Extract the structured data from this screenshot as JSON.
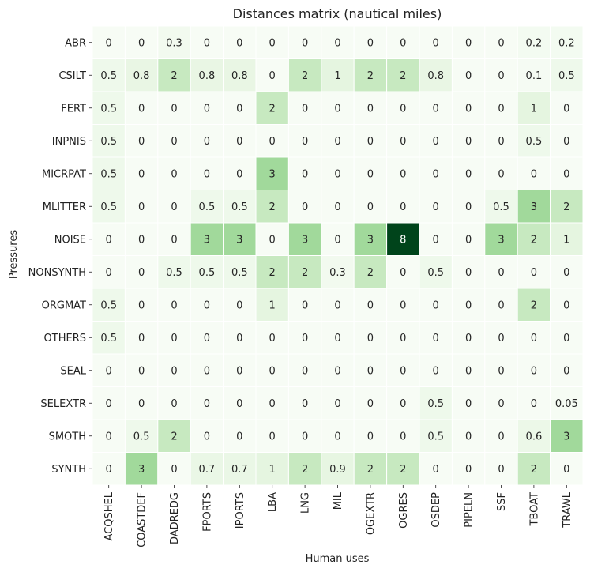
{
  "chart_data": {
    "type": "heatmap",
    "title": "Distances matrix (nautical miles)",
    "xlabel": "Human uses",
    "ylabel": "Pressures",
    "colormap": "Greens",
    "vmin": 0,
    "vmax": 8,
    "x_categories": [
      "ACQSHEL",
      "COASTDEF",
      "DADREDG",
      "FPORTS",
      "IPORTS",
      "LBA",
      "LNG",
      "MIL",
      "OGEXTR",
      "OGRES",
      "OSDEP",
      "PIPELN",
      "SSF",
      "TBOAT",
      "TRAWL"
    ],
    "y_categories": [
      "ABR",
      "CSILT",
      "FERT",
      "INPNIS",
      "MICRPAT",
      "MLITTER",
      "NOISE",
      "NONSYNTH",
      "ORGMAT",
      "OTHERS",
      "SEAL",
      "SELEXTR",
      "SMOTH",
      "SYNTH"
    ],
    "values": [
      [
        0,
        0,
        0.3,
        0,
        0,
        0,
        0,
        0,
        0,
        0,
        0,
        0,
        0,
        0.2,
        0.2
      ],
      [
        0.5,
        0.8,
        2,
        0.8,
        0.8,
        0,
        2,
        1,
        2,
        2,
        0.8,
        0,
        0,
        0.1,
        0.5
      ],
      [
        0.5,
        0,
        0,
        0,
        0,
        2,
        0,
        0,
        0,
        0,
        0,
        0,
        0,
        1,
        0
      ],
      [
        0.5,
        0,
        0,
        0,
        0,
        0,
        0,
        0,
        0,
        0,
        0,
        0,
        0,
        0.5,
        0
      ],
      [
        0.5,
        0,
        0,
        0,
        0,
        3,
        0,
        0,
        0,
        0,
        0,
        0,
        0,
        0,
        0
      ],
      [
        0.5,
        0,
        0,
        0.5,
        0.5,
        2,
        0,
        0,
        0,
        0,
        0,
        0,
        0.5,
        3,
        2
      ],
      [
        0,
        0,
        0,
        3,
        3,
        0,
        3,
        0,
        3,
        8,
        0,
        0,
        3,
        2,
        1
      ],
      [
        0,
        0,
        0.5,
        0.5,
        0.5,
        2,
        2,
        0.3,
        2,
        0,
        0.5,
        0,
        0,
        0,
        0
      ],
      [
        0.5,
        0,
        0,
        0,
        0,
        1,
        0,
        0,
        0,
        0,
        0,
        0,
        0,
        2,
        0
      ],
      [
        0.5,
        0,
        0,
        0,
        0,
        0,
        0,
        0,
        0,
        0,
        0,
        0,
        0,
        0,
        0
      ],
      [
        0,
        0,
        0,
        0,
        0,
        0,
        0,
        0,
        0,
        0,
        0,
        0,
        0,
        0,
        0
      ],
      [
        0,
        0,
        0,
        0,
        0,
        0,
        0,
        0,
        0,
        0,
        0.5,
        0,
        0,
        0,
        0.05
      ],
      [
        0,
        0.5,
        2,
        0,
        0,
        0,
        0,
        0,
        0,
        0,
        0.5,
        0,
        0,
        0.6,
        3
      ],
      [
        0,
        3,
        0,
        0.7,
        0.7,
        1,
        2,
        0.9,
        2,
        2,
        0,
        0,
        0,
        2,
        0
      ]
    ],
    "annotations": true,
    "legend": "none",
    "grid": false
  }
}
